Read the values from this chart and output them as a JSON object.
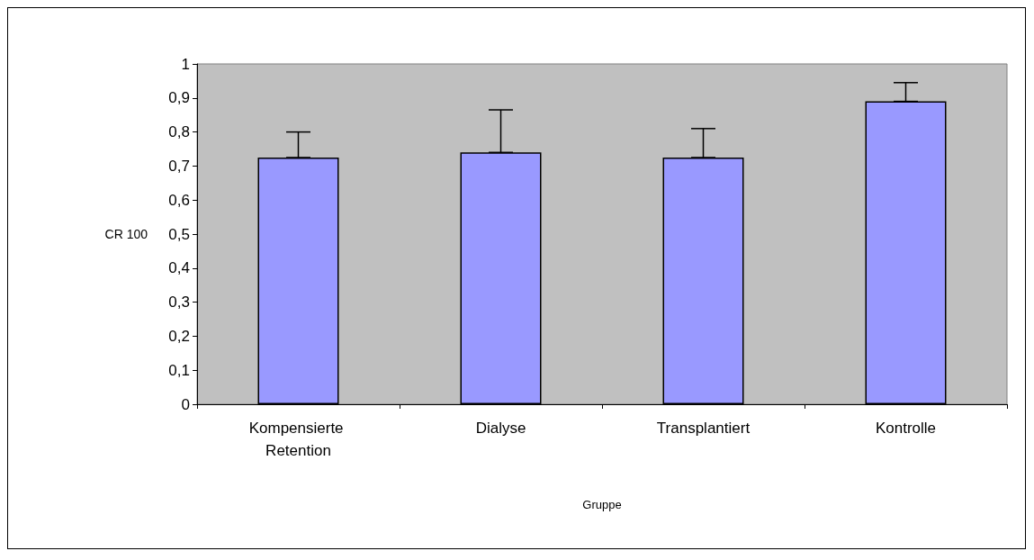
{
  "chart_data": {
    "type": "bar",
    "xlabel": "Gruppe",
    "ylabel": "CR 100",
    "categories": [
      "Kompensierte Retention",
      "Dialyse",
      "Transplantiert",
      "Kontrolle"
    ],
    "values": [
      0.725,
      0.74,
      0.725,
      0.89
    ],
    "errors": [
      [
        0.725,
        0.8
      ],
      [
        0.74,
        0.865
      ],
      [
        0.725,
        0.81
      ],
      [
        0.89,
        0.945
      ]
    ],
    "color": "#9999ff",
    "ylim": [
      0,
      1
    ],
    "yticks": [
      0,
      {
        "value": 0.1,
        "label": "0,1"
      },
      {
        "value": 0.2,
        "label": "0,2"
      },
      {
        "value": 0.3,
        "label": "0,3"
      },
      {
        "value": 0.4,
        "label": "0,4"
      },
      {
        "value": 0.5,
        "label": "0,5"
      },
      {
        "value": 0.6,
        "label": "0,6"
      },
      {
        "value": 0.7,
        "label": "0,7"
      },
      {
        "value": 0.8,
        "label": "0,8"
      },
      {
        "value": 0.9,
        "label": "0,9"
      },
      1
    ],
    "grid": false
  }
}
